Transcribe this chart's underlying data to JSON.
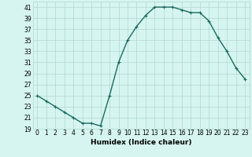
{
  "x": [
    0,
    1,
    2,
    3,
    4,
    5,
    6,
    7,
    8,
    9,
    10,
    11,
    12,
    13,
    14,
    15,
    16,
    17,
    18,
    19,
    20,
    21,
    22,
    23
  ],
  "y": [
    25,
    24,
    23,
    22,
    21,
    20,
    20,
    19.5,
    25,
    31,
    35,
    37.5,
    39.5,
    41,
    41,
    41,
    40.5,
    40,
    40,
    38.5,
    35.5,
    33,
    30,
    28
  ],
  "line_color": "#1a6b5e",
  "marker": "+",
  "marker_size": 3.5,
  "bg_color": "#d6f5f0",
  "grid_color": "#b0d8d0",
  "xlabel": "Humidex (Indice chaleur)",
  "xlim": [
    -0.5,
    23.5
  ],
  "ylim": [
    19,
    42
  ],
  "yticks": [
    19,
    21,
    23,
    25,
    27,
    29,
    31,
    33,
    35,
    37,
    39,
    41
  ],
  "xticks": [
    0,
    1,
    2,
    3,
    4,
    5,
    6,
    7,
    8,
    9,
    10,
    11,
    12,
    13,
    14,
    15,
    16,
    17,
    18,
    19,
    20,
    21,
    22,
    23
  ],
  "xlabel_fontsize": 6.5,
  "tick_fontsize": 5.5,
  "line_width": 1.0,
  "marker_edge_width": 0.8
}
